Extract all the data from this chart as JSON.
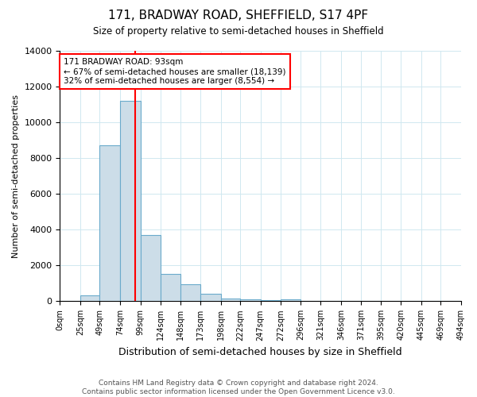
{
  "title": "171, BRADWAY ROAD, SHEFFIELD, S17 4PF",
  "subtitle": "Size of property relative to semi-detached houses in Sheffield",
  "xlabel": "Distribution of semi-detached houses by size in Sheffield",
  "ylabel": "Number of semi-detached properties",
  "footer": "Contains HM Land Registry data © Crown copyright and database right 2024.\nContains public sector information licensed under the Open Government Licence v3.0.",
  "annotation_title": "171 BRADWAY ROAD: 93sqm",
  "annotation_line1": "← 67% of semi-detached houses are smaller (18,139)",
  "annotation_line2": "32% of semi-detached houses are larger (8,554) →",
  "property_size": 93,
  "bar_color": "#ccdde8",
  "bar_edge_color": "#6aaacb",
  "vline_color": "red",
  "vline_x": 93,
  "ylim": [
    0,
    14000
  ],
  "bin_edges": [
    0,
    25,
    49,
    74,
    99,
    124,
    148,
    173,
    198,
    222,
    247,
    272,
    296,
    321,
    346,
    371,
    395,
    420,
    445,
    469,
    494
  ],
  "bin_labels": [
    "0sqm",
    "25sqm",
    "49sqm",
    "74sqm",
    "99sqm",
    "124sqm",
    "148sqm",
    "173sqm",
    "198sqm",
    "222sqm",
    "247sqm",
    "272sqm",
    "296sqm",
    "321sqm",
    "346sqm",
    "371sqm",
    "395sqm",
    "420sqm",
    "445sqm",
    "469sqm",
    "494sqm"
  ],
  "bar_heights": [
    0,
    350,
    8700,
    11200,
    3700,
    1550,
    950,
    430,
    170,
    110,
    70,
    120,
    0,
    0,
    0,
    0,
    0,
    0,
    0,
    0
  ],
  "grid_color": "#d0e8f0",
  "title_fontsize": 11,
  "subtitle_fontsize": 8.5,
  "ylabel_fontsize": 8,
  "xlabel_fontsize": 9,
  "tick_fontsize": 7,
  "footer_fontsize": 6.5
}
